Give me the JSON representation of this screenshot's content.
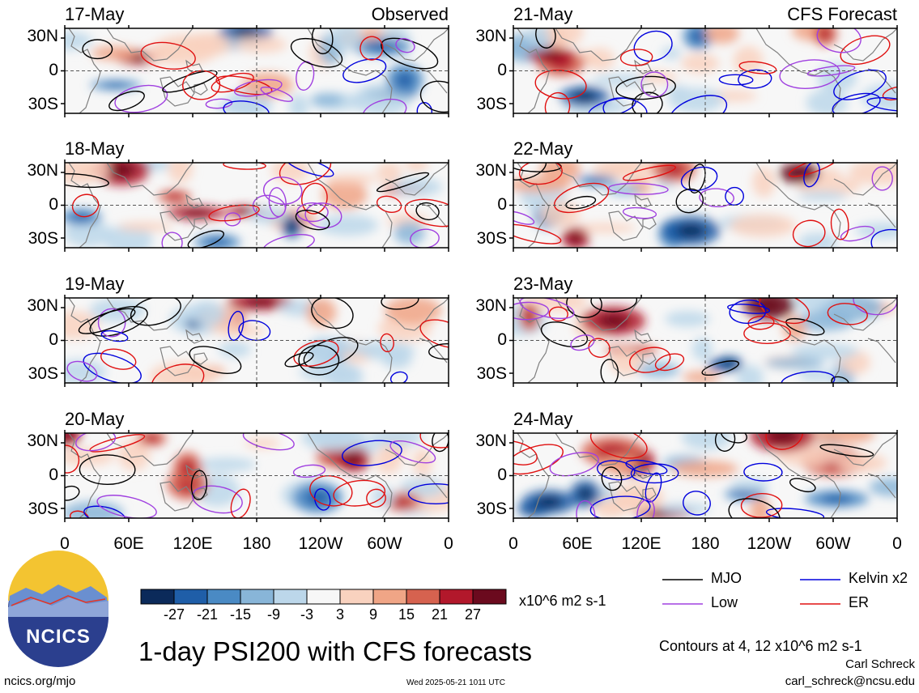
{
  "panels": {
    "observed_label": "Observed",
    "forecast_label": "CFS Forecast",
    "observed_dates": [
      "17-May",
      "18-May",
      "19-May",
      "20-May"
    ],
    "forecast_dates": [
      "21-May",
      "22-May",
      "23-May",
      "24-May"
    ]
  },
  "axes": {
    "lat_ticks": [
      "30N",
      "0",
      "30S"
    ],
    "lon_ticks": [
      "0",
      "60E",
      "120E",
      "180",
      "120W",
      "60W",
      "0"
    ]
  },
  "colorbar": {
    "ticks": [
      "-27",
      "-21",
      "-15",
      "-9",
      "-3",
      "3",
      "9",
      "15",
      "21",
      "27"
    ],
    "units": "x10^6 m2 s-1",
    "colors": [
      "#0b2a5a",
      "#1f5ea8",
      "#4a8ac4",
      "#88b5d8",
      "#bcd7ea",
      "#f7f7f7",
      "#f9d2bf",
      "#f0a586",
      "#d6624f",
      "#b2182b",
      "#6b0a1e"
    ]
  },
  "legend": {
    "items": [
      {
        "label": "MJO",
        "color": "#000000"
      },
      {
        "label": "Kelvin x2",
        "color": "#0000dd"
      },
      {
        "label": "Low",
        "color": "#a040e0"
      },
      {
        "label": "ER",
        "color": "#e01010"
      }
    ],
    "contour_note": "Contours at 4, 12 x10^6 m2 s-1"
  },
  "logo_text": "NCICS",
  "title": "1-day PSI200 with CFS forecasts",
  "footer": {
    "url": "ncics.org/mjo",
    "timestamp": "Wed 2025-05-21 1011 UTC",
    "author": "Carl Schreck",
    "email": "carl_schreck@ncsu.edu"
  }
}
